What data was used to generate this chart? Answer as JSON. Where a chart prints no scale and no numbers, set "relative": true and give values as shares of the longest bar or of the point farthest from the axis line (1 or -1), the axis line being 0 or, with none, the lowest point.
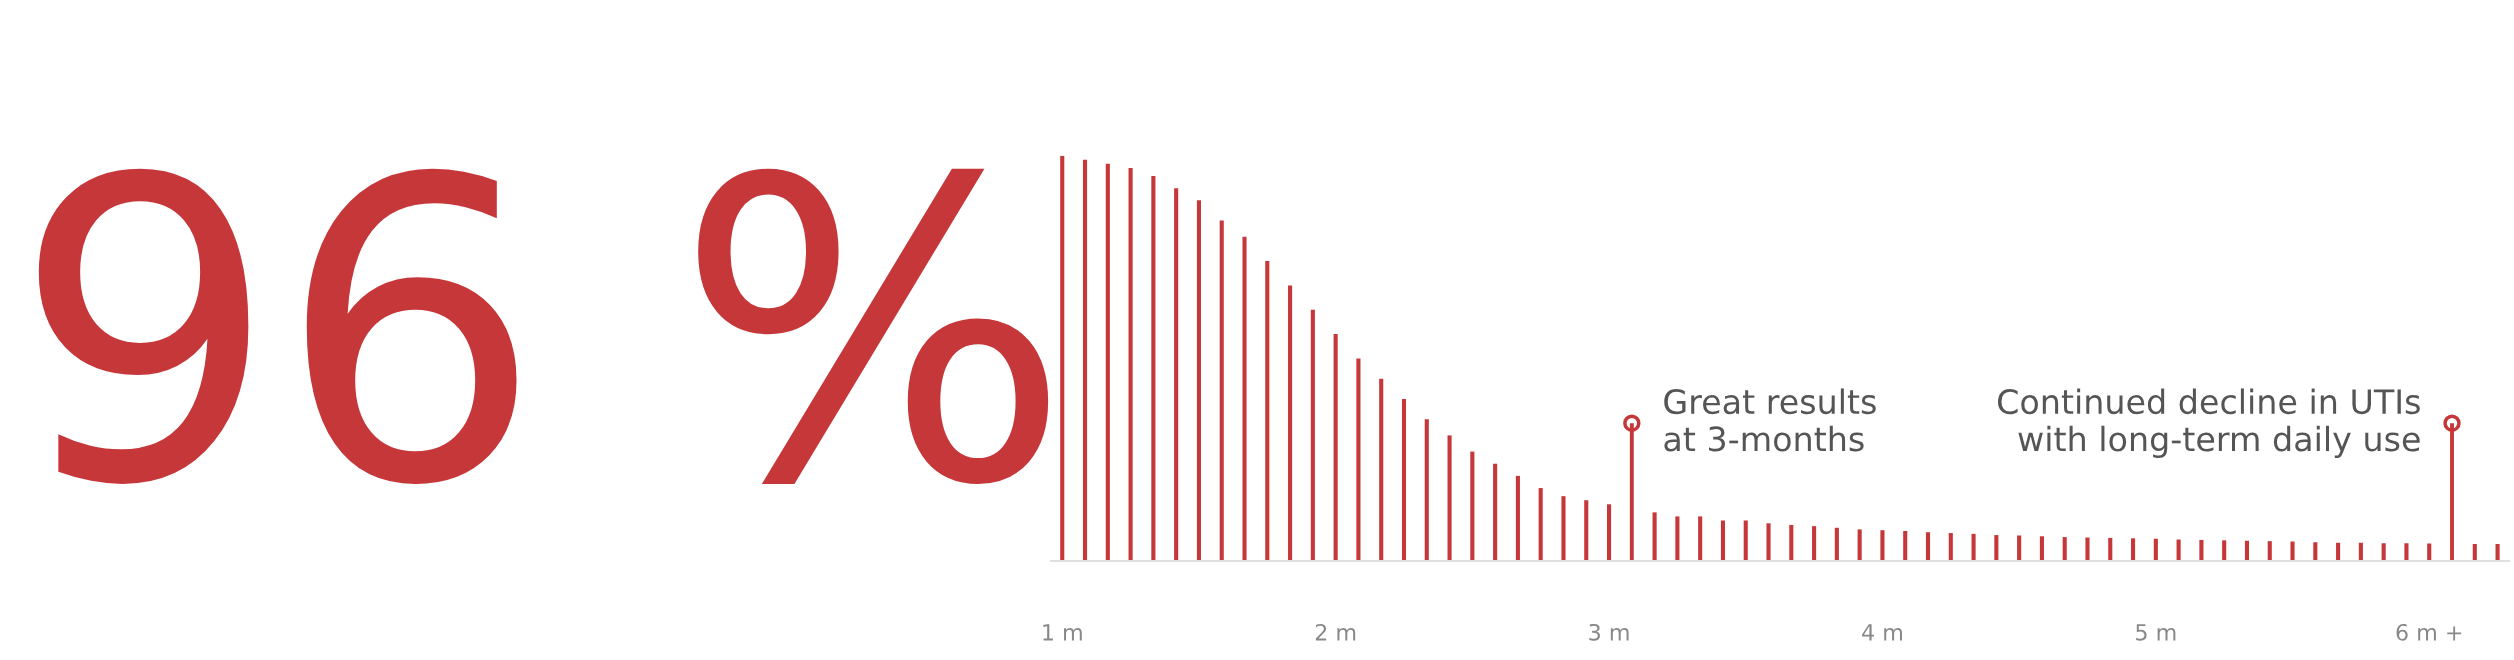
{
  "chart_data": {
    "type": "bar",
    "title": "96 %",
    "relative": true,
    "categories": [
      "1 m",
      null,
      null,
      null,
      null,
      null,
      null,
      null,
      null,
      null,
      null,
      null,
      "2 m",
      null,
      null,
      null,
      null,
      null,
      null,
      null,
      null,
      null,
      null,
      null,
      "3 m",
      null,
      null,
      null,
      null,
      null,
      null,
      null,
      null,
      null,
      null,
      null,
      "4 m",
      null,
      null,
      null,
      null,
      null,
      null,
      null,
      null,
      null,
      null,
      null,
      "5 m",
      null,
      null,
      null,
      null,
      null,
      null,
      null,
      null,
      null,
      null,
      null,
      "6 m +",
      null,
      null,
      null
    ],
    "series": [
      {
        "type": "bar",
        "color": "#c6373a",
        "values": [
          1,
          0.99,
          0.98,
          0.97,
          0.95,
          0.92,
          0.89,
          0.84,
          0.8,
          0.74,
          0.68,
          0.62,
          0.56,
          0.5,
          0.45,
          0.4,
          0.35,
          0.31,
          0.27,
          0.24,
          0.21,
          0.18,
          0.16,
          0.15,
          0.14,
          null,
          0.12,
          0.11,
          0.11,
          0.1,
          0.1,
          0.093,
          0.089,
          0.086,
          0.082,
          0.078,
          0.076,
          0.074,
          0.071,
          0.069,
          0.067,
          0.064,
          0.063,
          0.061,
          0.059,
          0.058,
          0.057,
          0.056,
          0.055,
          0.053,
          0.052,
          0.051,
          0.05,
          0.049,
          0.048,
          0.046,
          0.045,
          0.045,
          0.044,
          0.044,
          0.043,
          null,
          0.042,
          0.042
        ]
      },
      {
        "type": "lollipop",
        "color": "#c6373a",
        "marker": "circle",
        "values": [
          null,
          null,
          null,
          null,
          null,
          null,
          null,
          null,
          null,
          null,
          null,
          null,
          null,
          null,
          null,
          null,
          null,
          null,
          null,
          null,
          null,
          null,
          null,
          null,
          null,
          0.34,
          null,
          null,
          null,
          null,
          null,
          null,
          null,
          null,
          null,
          null,
          null,
          null,
          null,
          null,
          null,
          null,
          null,
          null,
          null,
          null,
          null,
          null,
          null,
          null,
          null,
          null,
          null,
          null,
          null,
          null,
          null,
          null,
          null,
          null,
          null,
          0.34,
          null,
          null
        ]
      }
    ],
    "annotations": [
      "Great results\nat 3-months",
      "Continued decline in UTIs\nwith long-term daily use"
    ],
    "grid": false,
    "legend": false
  }
}
